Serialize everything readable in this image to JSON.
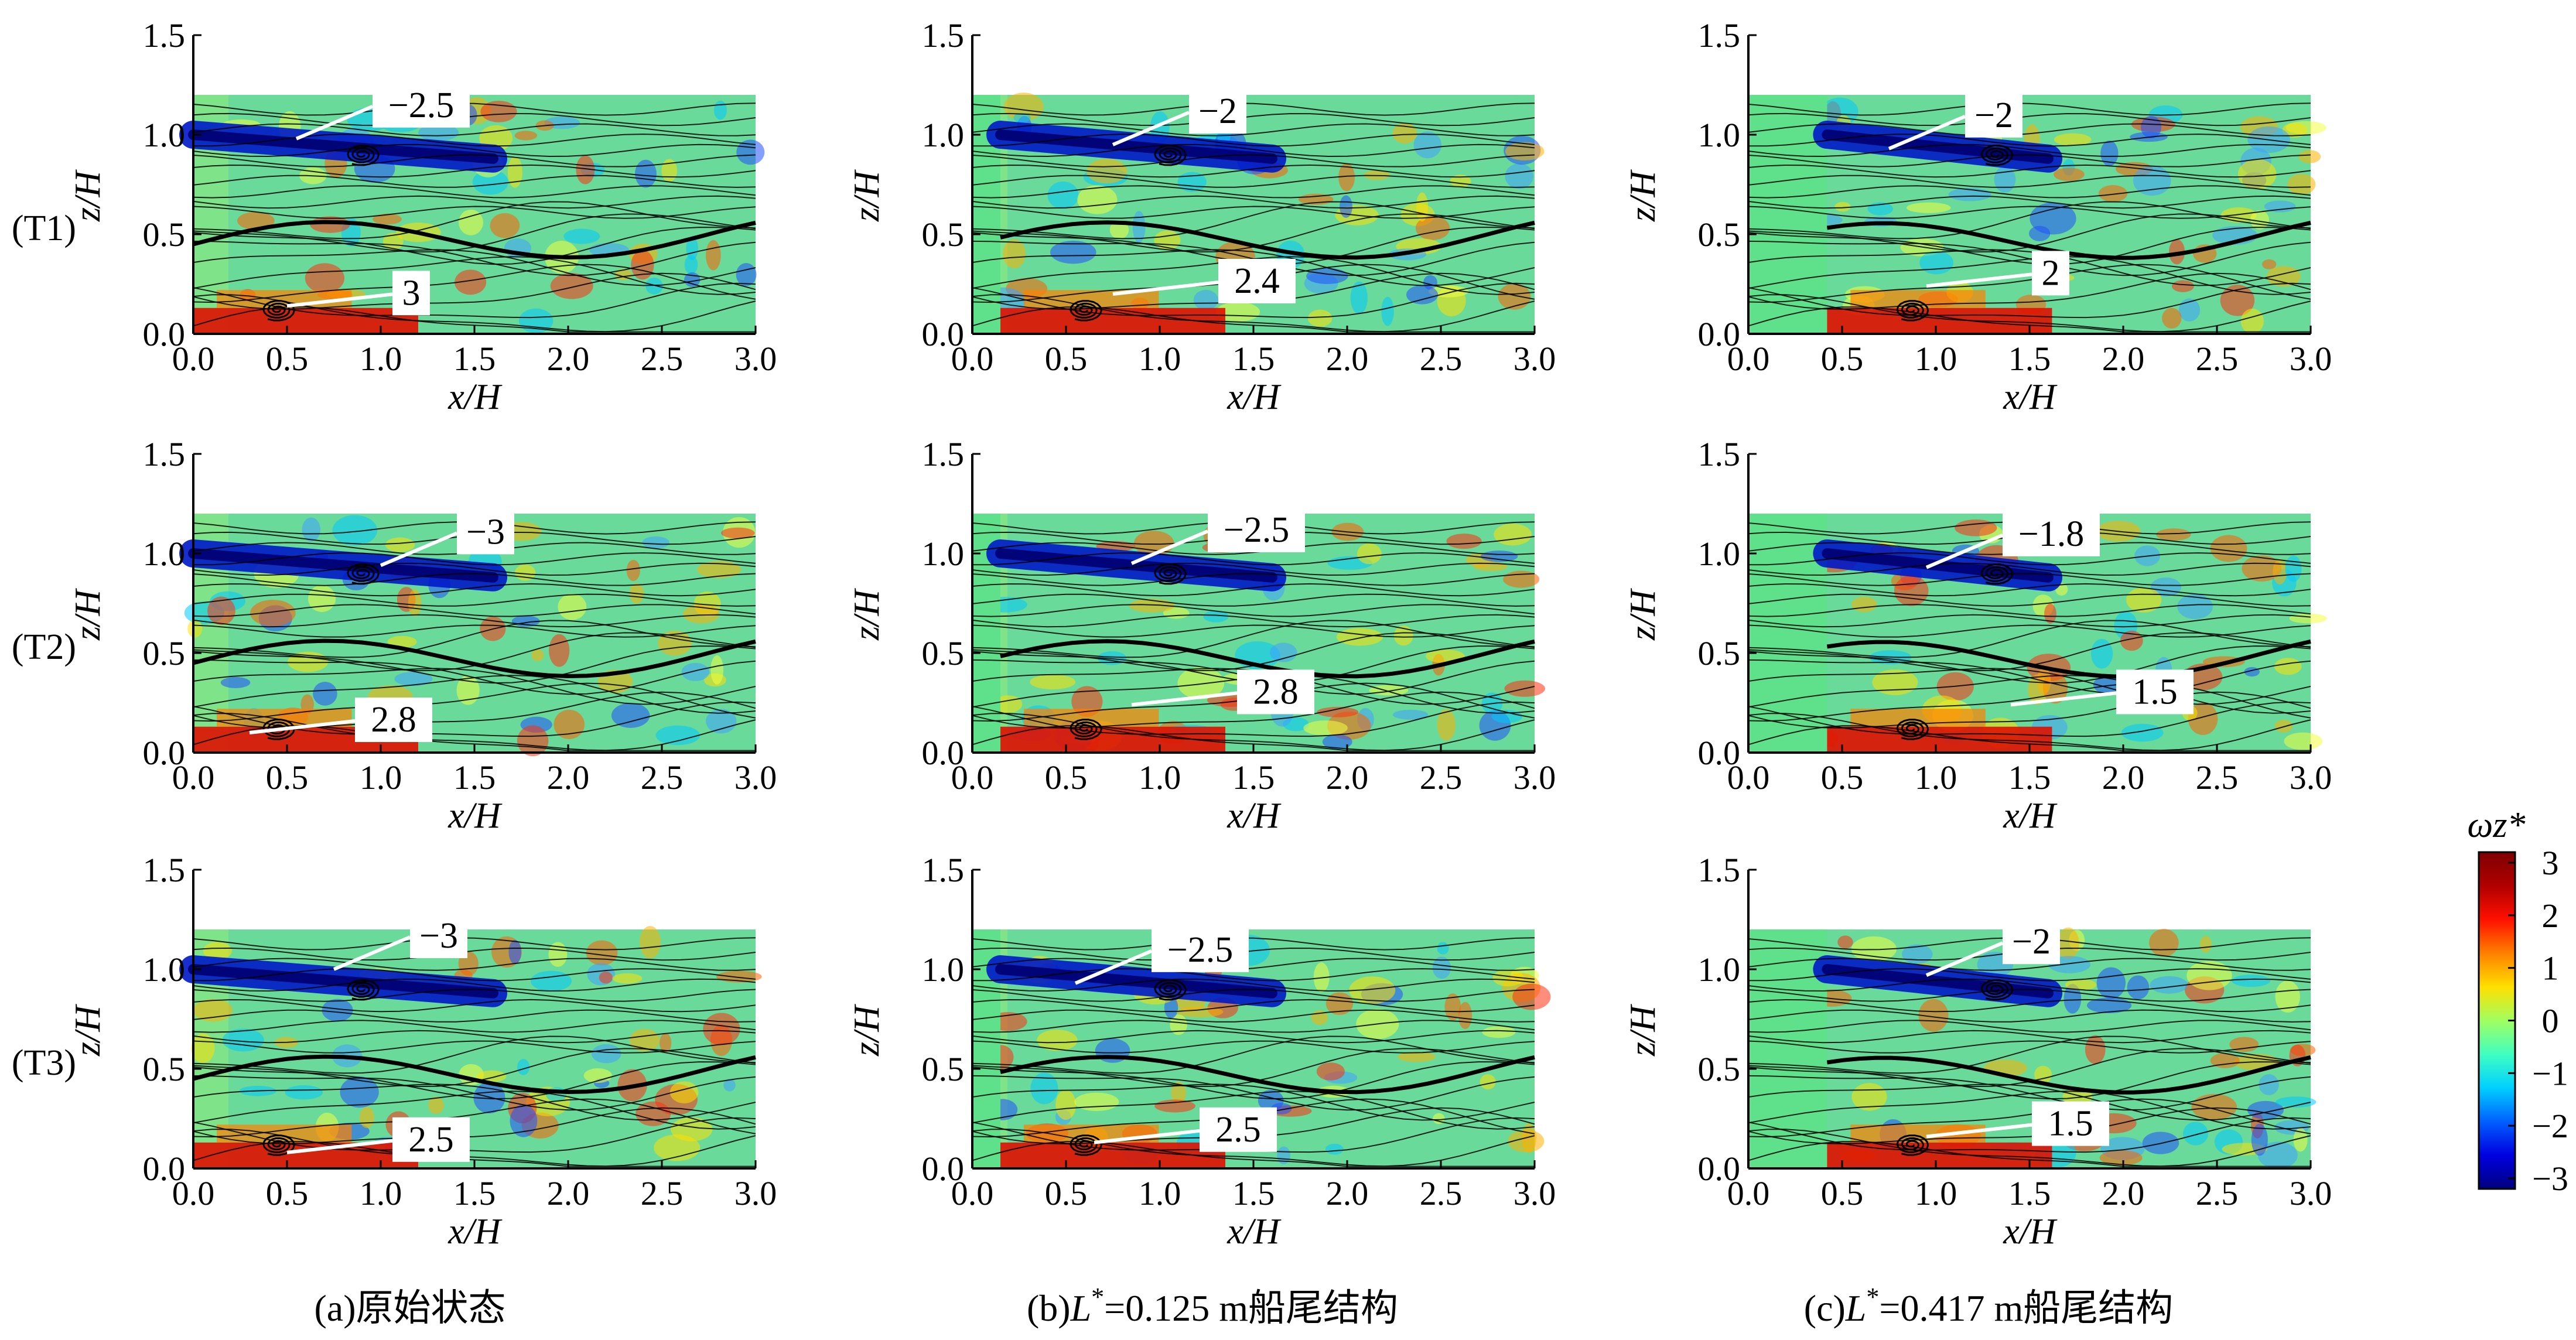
{
  "chart_data": {
    "type": "heatmap",
    "field": "vorticity with streamlines",
    "colorbar": {
      "label": "ωz*",
      "min": -3.2,
      "max": 3.2,
      "ticks": [
        "3",
        "2",
        "1",
        "0",
        "−1",
        "−2",
        "−3"
      ],
      "colors": [
        "#00007f",
        "#0000e0",
        "#0060ff",
        "#00d0ff",
        "#40ffc0",
        "#a0ff60",
        "#ffe000",
        "#ff8000",
        "#ff1000",
        "#b00000",
        "#7f0000"
      ]
    },
    "axes": {
      "xlabel": "x/H",
      "ylabel": "z/H",
      "xlim": [
        0.0,
        3.0
      ],
      "ylim": [
        0.0,
        1.5
      ],
      "xticks": [
        "0.0",
        "0.5",
        "1.0",
        "1.5",
        "2.0",
        "2.5",
        "3.0"
      ],
      "yticks": [
        "0.0",
        "0.5",
        "1.0",
        "1.5"
      ]
    },
    "columns": [
      {
        "caption": "(a)原始状态",
        "stern_length_xH": 0.0
      },
      {
        "caption_prefix": "(b)",
        "caption_var": "L",
        "caption_sup": "*",
        "caption_rest": "=0.125 m船尾结构",
        "stern_length_xH": 0.15
      },
      {
        "caption_prefix": "(c)",
        "caption_var": "L",
        "caption_sup": "*",
        "caption_rest": "=0.417 m船尾结构",
        "stern_length_xH": 0.42
      }
    ],
    "rows": [
      "(T1)",
      "(T2)",
      "(T3)"
    ],
    "panels": [
      {
        "row": 0,
        "col": 0,
        "neg": {
          "label": "−2.5",
          "x": 0.55,
          "z": 0.98
        },
        "pos": {
          "label": "3",
          "x": 0.5,
          "z": 0.14
        }
      },
      {
        "row": 0,
        "col": 1,
        "neg": {
          "label": "−2",
          "x": 0.75,
          "z": 0.95
        },
        "pos": {
          "label": "2.4",
          "x": 0.75,
          "z": 0.2
        }
      },
      {
        "row": 0,
        "col": 2,
        "neg": {
          "label": "−2",
          "x": 0.75,
          "z": 0.93
        },
        "pos": {
          "label": "2",
          "x": 0.95,
          "z": 0.24
        }
      },
      {
        "row": 1,
        "col": 0,
        "neg": {
          "label": "−3",
          "x": 1.0,
          "z": 0.94
        },
        "pos": {
          "label": "2.8",
          "x": 0.3,
          "z": 0.1
        }
      },
      {
        "row": 1,
        "col": 1,
        "neg": {
          "label": "−2.5",
          "x": 0.85,
          "z": 0.95
        },
        "pos": {
          "label": "2.8",
          "x": 0.85,
          "z": 0.24
        }
      },
      {
        "row": 1,
        "col": 2,
        "neg": {
          "label": "−1.8",
          "x": 0.95,
          "z": 0.93
        },
        "pos": {
          "label": "1.5",
          "x": 1.4,
          "z": 0.24
        }
      },
      {
        "row": 2,
        "col": 0,
        "neg": {
          "label": "−3",
          "x": 0.75,
          "z": 1.0
        },
        "pos": {
          "label": "2.5",
          "x": 0.5,
          "z": 0.08
        }
      },
      {
        "row": 2,
        "col": 1,
        "neg": {
          "label": "−2.5",
          "x": 0.55,
          "z": 0.93
        },
        "pos": {
          "label": "2.5",
          "x": 0.65,
          "z": 0.13
        }
      },
      {
        "row": 2,
        "col": 2,
        "neg": {
          "label": "−2",
          "x": 0.95,
          "z": 0.97
        },
        "pos": {
          "label": "1.5",
          "x": 0.95,
          "z": 0.16
        }
      }
    ]
  }
}
